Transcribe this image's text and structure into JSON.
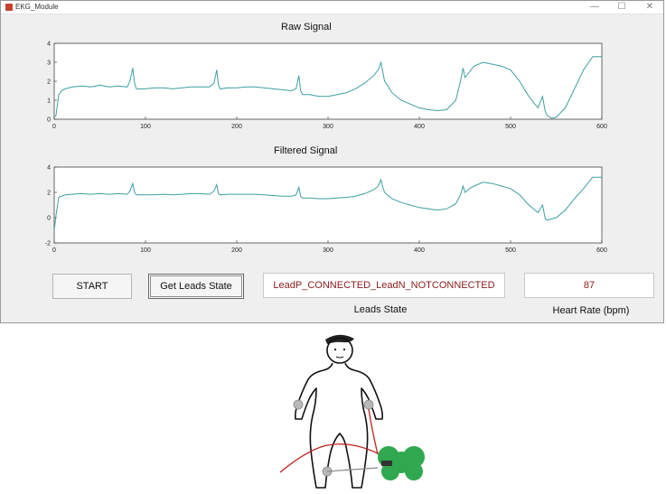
{
  "window": {
    "title": "EKG_Module",
    "controls": [
      "—",
      "☐",
      "✕"
    ]
  },
  "plots": {
    "raw": {
      "title": "Raw Signal",
      "xlim": [
        0,
        600
      ],
      "ylim": [
        0,
        4
      ],
      "xticks": [
        "0",
        "100",
        "200",
        "300",
        "400",
        "500",
        "600"
      ],
      "yticks": [
        "0",
        "1",
        "2",
        "3",
        "4"
      ]
    },
    "filtered": {
      "title": "Filtered Signal",
      "xlim": [
        0,
        600
      ],
      "ylim": [
        -2,
        4
      ],
      "xticks": [
        "0",
        "100",
        "200",
        "300",
        "400",
        "500",
        "600"
      ],
      "yticks": [
        "-2",
        "0",
        "2",
        "4"
      ]
    }
  },
  "chart_data": [
    {
      "type": "line",
      "title": "Raw Signal",
      "xlim": [
        0,
        600
      ],
      "ylim": [
        0,
        4
      ],
      "color": "#3f9f9f",
      "x": [
        0,
        2,
        5,
        8,
        12,
        20,
        30,
        40,
        50,
        60,
        70,
        80,
        83,
        86,
        88,
        90,
        92,
        100,
        110,
        120,
        130,
        140,
        150,
        160,
        170,
        175,
        178,
        180,
        182,
        190,
        200,
        210,
        220,
        230,
        240,
        250,
        260,
        265,
        268,
        270,
        272,
        280,
        290,
        300,
        310,
        320,
        330,
        340,
        350,
        355,
        358,
        360,
        362,
        365,
        370,
        380,
        390,
        400,
        410,
        420,
        430,
        440,
        445,
        448,
        450,
        455,
        460,
        470,
        480,
        490,
        500,
        510,
        520,
        530,
        535,
        538,
        540,
        545,
        550,
        560,
        570,
        580,
        590,
        600
      ],
      "y": [
        0.1,
        0.2,
        1.3,
        1.5,
        1.6,
        1.7,
        1.75,
        1.7,
        1.8,
        1.7,
        1.75,
        1.7,
        2.0,
        2.7,
        1.9,
        1.6,
        1.6,
        1.6,
        1.65,
        1.65,
        1.6,
        1.65,
        1.7,
        1.7,
        1.7,
        1.9,
        2.6,
        1.8,
        1.6,
        1.65,
        1.65,
        1.7,
        1.7,
        1.65,
        1.6,
        1.55,
        1.5,
        1.6,
        2.3,
        1.5,
        1.3,
        1.3,
        1.2,
        1.2,
        1.3,
        1.4,
        1.6,
        1.9,
        2.3,
        2.6,
        3.0,
        2.5,
        2.0,
        1.8,
        1.4,
        1.0,
        0.8,
        0.6,
        0.5,
        0.45,
        0.5,
        1.0,
        2.0,
        2.7,
        2.2,
        2.5,
        2.8,
        3.0,
        2.9,
        2.8,
        2.6,
        2.0,
        1.2,
        0.6,
        1.2,
        0.4,
        0.2,
        0.05,
        0.1,
        0.6,
        1.6,
        2.6,
        3.3,
        3.3
      ]
    },
    {
      "type": "line",
      "title": "Filtered Signal",
      "xlim": [
        0,
        600
      ],
      "ylim": [
        -2,
        4
      ],
      "color": "#3f9f9f",
      "x": [
        0,
        2,
        5,
        8,
        12,
        20,
        30,
        40,
        50,
        60,
        70,
        80,
        83,
        86,
        88,
        90,
        92,
        100,
        110,
        120,
        130,
        140,
        150,
        160,
        170,
        175,
        178,
        180,
        182,
        190,
        200,
        210,
        220,
        230,
        240,
        250,
        260,
        265,
        268,
        270,
        272,
        280,
        290,
        300,
        310,
        320,
        330,
        340,
        350,
        355,
        358,
        360,
        362,
        365,
        370,
        380,
        390,
        400,
        410,
        420,
        430,
        440,
        445,
        448,
        450,
        455,
        460,
        470,
        480,
        490,
        500,
        510,
        520,
        530,
        535,
        538,
        540,
        545,
        550,
        560,
        570,
        580,
        590,
        600
      ],
      "y": [
        -1.0,
        0.2,
        1.6,
        1.7,
        1.8,
        1.85,
        1.9,
        1.85,
        1.9,
        1.85,
        1.9,
        1.85,
        2.1,
        2.7,
        2.0,
        1.8,
        1.8,
        1.8,
        1.8,
        1.85,
        1.8,
        1.85,
        1.9,
        1.9,
        1.85,
        2.1,
        2.6,
        1.9,
        1.8,
        1.85,
        1.85,
        1.85,
        1.85,
        1.8,
        1.75,
        1.7,
        1.7,
        1.8,
        2.4,
        1.7,
        1.55,
        1.55,
        1.5,
        1.5,
        1.55,
        1.6,
        1.7,
        1.9,
        2.2,
        2.5,
        3.0,
        2.4,
        2.0,
        1.8,
        1.5,
        1.2,
        1.0,
        0.8,
        0.7,
        0.6,
        0.7,
        1.1,
        1.8,
        2.5,
        2.0,
        2.3,
        2.5,
        2.8,
        2.7,
        2.5,
        2.3,
        1.8,
        1.0,
        0.4,
        1.0,
        -0.1,
        -0.2,
        -0.1,
        0.0,
        0.6,
        1.5,
        2.3,
        3.2,
        3.2
      ]
    }
  ],
  "controls": {
    "start_label": "START",
    "leads_button_label": "Get Leads State",
    "leads_state_value": "LeadP_CONNECTED_LeadN_NOTCONNECTED",
    "leads_state_caption": "Leads State",
    "heart_rate_value": "87",
    "heart_rate_caption": "Heart Rate (bpm)"
  },
  "colors": {
    "signal": "#3f9f9f",
    "leads_text": "#8b1a1a",
    "heart_rate_text": "#8b1a1a",
    "board": "#2fa84f",
    "wire": "#c02020"
  }
}
